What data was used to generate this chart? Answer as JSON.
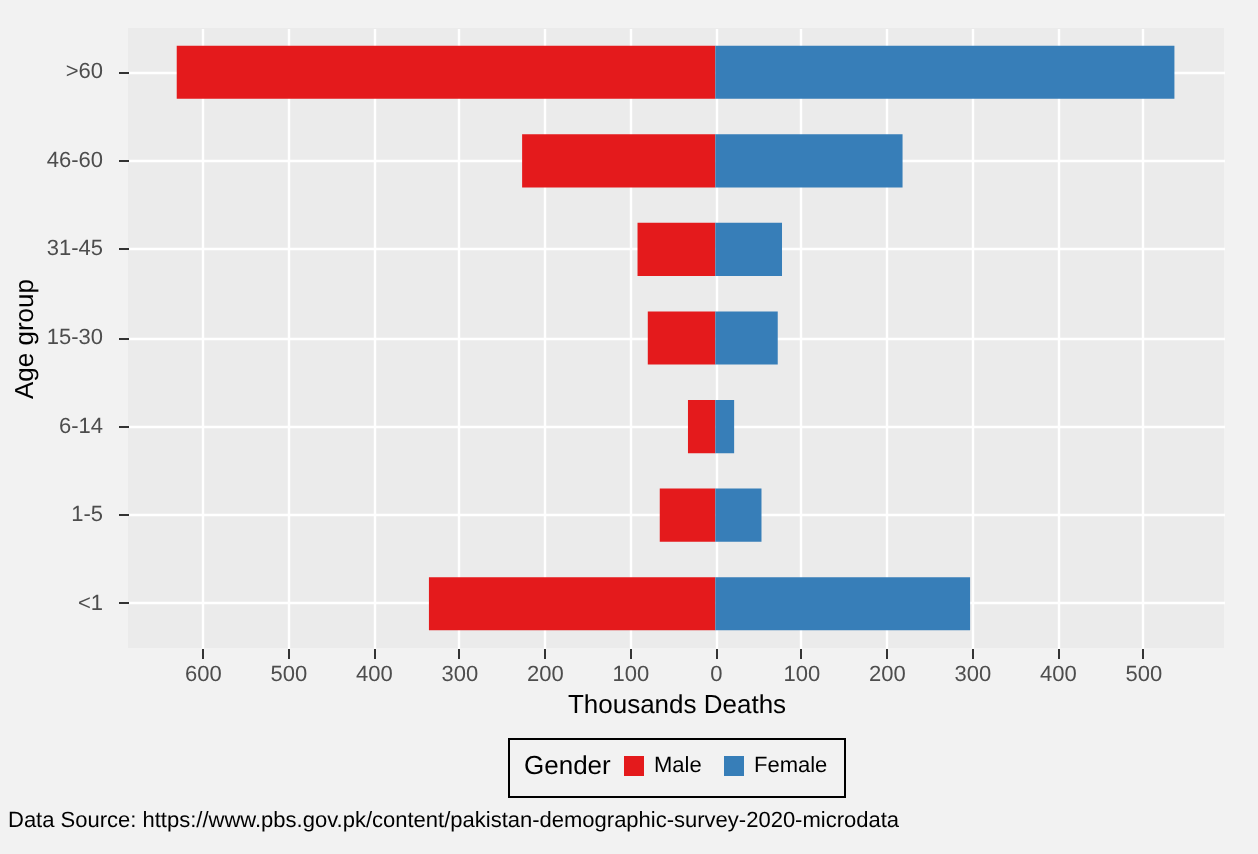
{
  "chart_data": {
    "type": "bar",
    "orientation": "horizontal",
    "xlabel": "Thousands Deaths",
    "ylabel": "Age group",
    "legend_title": "Gender",
    "legend": "bottom",
    "grid": true,
    "stacked": true,
    "categories": [
      ">60",
      "46-60",
      "31-45",
      "15-30",
      "6-14",
      "1-5",
      "<1"
    ],
    "series": [
      {
        "name": "Male",
        "color": "#e41a1c",
        "values": [
          -630,
          -226,
          -91,
          -79,
          -32,
          -65,
          -335
        ]
      },
      {
        "name": "Female",
        "color": "#377eb8",
        "values": [
          537,
          219,
          78,
          73,
          22,
          54,
          298
        ]
      }
    ],
    "xlim": [
      -687,
      595
    ],
    "xticks": [
      {
        "value": -600,
        "label": "600"
      },
      {
        "value": -500,
        "label": "500"
      },
      {
        "value": -400,
        "label": "400"
      },
      {
        "value": -300,
        "label": "300"
      },
      {
        "value": -200,
        "label": "200"
      },
      {
        "value": -100,
        "label": "100"
      },
      0,
      100,
      200,
      300,
      400,
      500
    ],
    "annotations": [
      "Data Source: https://www.pbs.gov.pk/content/pakistan-demographic-survey-2020-microdata"
    ]
  }
}
